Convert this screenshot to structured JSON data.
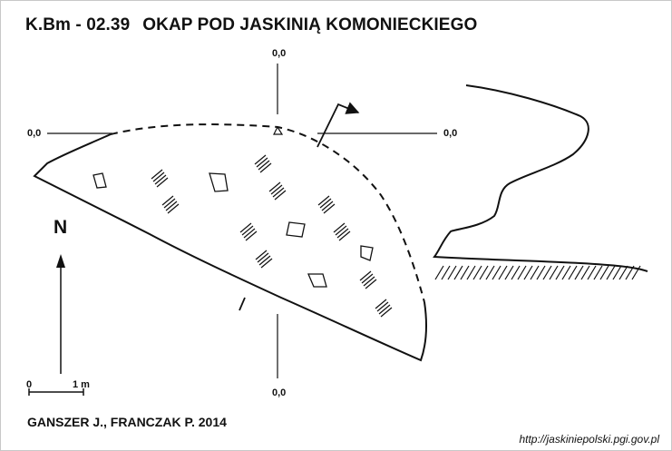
{
  "header": {
    "code": "K.Bm - 02.39",
    "name": "OKAP POD JASKINIĄ KOMONIECKIEGO"
  },
  "datum_labels": {
    "top": "0,0",
    "left": "0,0",
    "right": "0,0",
    "bottom": "0,0"
  },
  "north_label": "N",
  "scale": {
    "zero": "0",
    "length": "1 m"
  },
  "authors": "GANSZER J., FRANCZAK P. 2014",
  "source_url": "http://jaskiniepolski.pgi.gov.pl",
  "colors": {
    "ink": "#111111",
    "background": "#ffffff"
  }
}
